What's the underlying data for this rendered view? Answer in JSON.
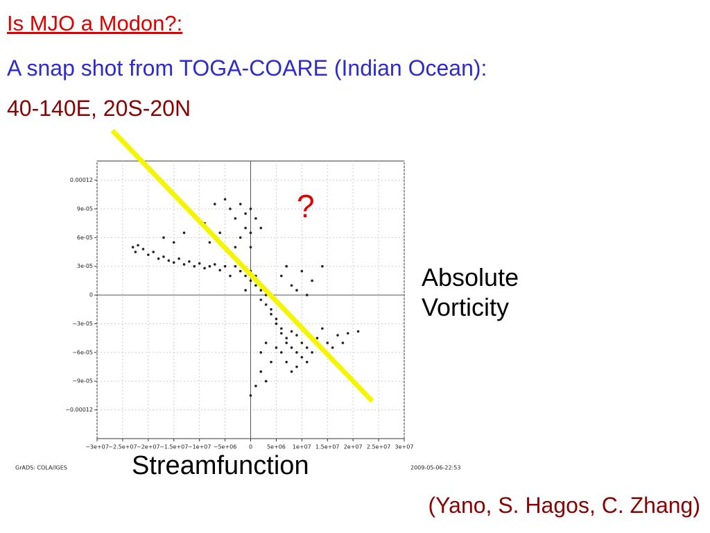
{
  "slide": {
    "heading": "Is MJO a Modon?:",
    "subtitle": "A snap shot from TOGA-COARE (Indian Ocean):",
    "region": "40-140E, 20S-20N",
    "annotation": "?",
    "software": "GrADS: COLA/IGES",
    "timestamp": "2009-05-06-22:53",
    "credit": "(Yano, S. Hagos, C. Zhang)"
  },
  "chart_data": {
    "type": "scatter",
    "xlabel": "Streamfunction",
    "ylabel": "Absolute Vorticity",
    "color": "#222222",
    "grid": true,
    "xlim": [
      -30000000,
      30000000
    ],
    "ylim": [
      -0.00015,
      0.00014
    ],
    "xticks": [
      {
        "value": -30000000,
        "label": "−3e+07"
      },
      {
        "value": -25000000,
        "label": "−2.5e+07"
      },
      {
        "value": -20000000,
        "label": "−2e+07"
      },
      {
        "value": -15000000,
        "label": "−1.5e+07"
      },
      {
        "value": -10000000,
        "label": "−1e+07"
      },
      {
        "value": -5000000,
        "label": "−5e+06"
      },
      0,
      {
        "value": 5000000,
        "label": "5e+06"
      },
      {
        "value": 10000000,
        "label": "1e+07"
      },
      {
        "value": 15000000,
        "label": "1.5e+07"
      },
      {
        "value": 20000000,
        "label": "2e+07"
      },
      {
        "value": 25000000,
        "label": "2.5e+07"
      },
      {
        "value": 30000000,
        "label": "3e+07"
      }
    ],
    "yticks": [
      0.00012,
      {
        "value": 9e-05,
        "label": "9e-05"
      },
      {
        "value": 6e-05,
        "label": "6e-05"
      },
      {
        "value": 3e-05,
        "label": "3e-05"
      },
      0,
      {
        "value": -3e-05,
        "label": "−3e-05"
      },
      {
        "value": -6e-05,
        "label": "−6e-05"
      },
      {
        "value": -9e-05,
        "label": "−9e-05"
      },
      {
        "value": -0.00012,
        "label": "−0.00012"
      }
    ],
    "x": [
      -23000000,
      -22500000,
      -22000000,
      -21000000,
      -20000000,
      -19000000,
      -18000000,
      -17000000,
      -16000000,
      -15000000,
      -14000000,
      -13000000,
      -12000000,
      -11000000,
      -10000000,
      -9000000,
      -8000000,
      -7000000,
      -6000000,
      -5000000,
      -17000000,
      -15000000,
      -13000000,
      -9000000,
      -7000000,
      -5000000,
      -4000000,
      -3000000,
      -2000000,
      -1000000,
      0,
      1000000,
      -1000000,
      0,
      -2000000,
      -3000000,
      0,
      -6000000,
      -8000000,
      2000000,
      -3000000,
      -2000000,
      -1000000,
      0,
      0,
      1000000,
      1000000,
      2000000,
      2000000,
      3000000,
      3000000,
      4000000,
      4000000,
      5000000,
      5000000,
      -4000000,
      -1000000,
      6000000,
      6000000,
      7000000,
      7000000,
      8000000,
      8000000,
      9000000,
      9000000,
      10000000,
      10000000,
      11000000,
      12000000,
      7000000,
      8000000,
      6000000,
      5000000,
      9000000,
      11000000,
      13000000,
      15000000,
      17000000,
      19000000,
      21000000,
      16000000,
      18000000,
      14000000,
      6000000,
      8000000,
      10000000,
      12000000,
      14000000,
      9000000,
      7000000,
      11000000,
      2000000,
      2000000,
      3000000,
      1000000,
      4000000,
      0,
      3000000
    ],
    "values": [
      5e-05,
      4.5e-05,
      5.2e-05,
      4.8e-05,
      4.2e-05,
      4.5e-05,
      3.8e-05,
      4e-05,
      3.6e-05,
      3.4e-05,
      3.8e-05,
      3.2e-05,
      3.5e-05,
      3e-05,
      3.3e-05,
      2.8e-05,
      3e-05,
      3.2e-05,
      2.6e-05,
      3e-05,
      6e-05,
      5.5e-05,
      6.5e-05,
      7.5e-05,
      9.5e-05,
      0.0001,
      9e-05,
      8e-05,
      9.5e-05,
      8.5e-05,
      9e-05,
      8e-05,
      7e-05,
      6.5e-05,
      6e-05,
      5e-05,
      5e-05,
      6.5e-05,
      5.5e-05,
      7e-05,
      3e-05,
      2.5e-05,
      2e-05,
      1.5e-05,
      2.5e-05,
      1e-05,
      2e-05,
      5e-06,
      -5e-06,
      0,
      -1e-05,
      -1.5e-05,
      -2e-05,
      -2.5e-05,
      -3e-05,
      2e-05,
      5e-06,
      -3.5e-05,
      -4e-05,
      -4.5e-05,
      -5e-05,
      -3.8e-05,
      -5.5e-05,
      -4.2e-05,
      -6e-05,
      -5e-05,
      -6.5e-05,
      -5.5e-05,
      -6e-05,
      -7e-05,
      -8e-05,
      -6e-05,
      -5.5e-05,
      -7.5e-05,
      -7e-05,
      -4.5e-05,
      -5e-05,
      -4.2e-05,
      -4e-05,
      -3.8e-05,
      -5.5e-05,
      -5e-05,
      -3.5e-05,
      2e-05,
      1e-05,
      2.5e-05,
      1.5e-05,
      3e-05,
      5e-06,
      3e-05,
      0,
      -6e-05,
      -8e-05,
      -9e-05,
      -9.5e-05,
      -7e-05,
      -0.000105,
      -5e-05
    ]
  }
}
